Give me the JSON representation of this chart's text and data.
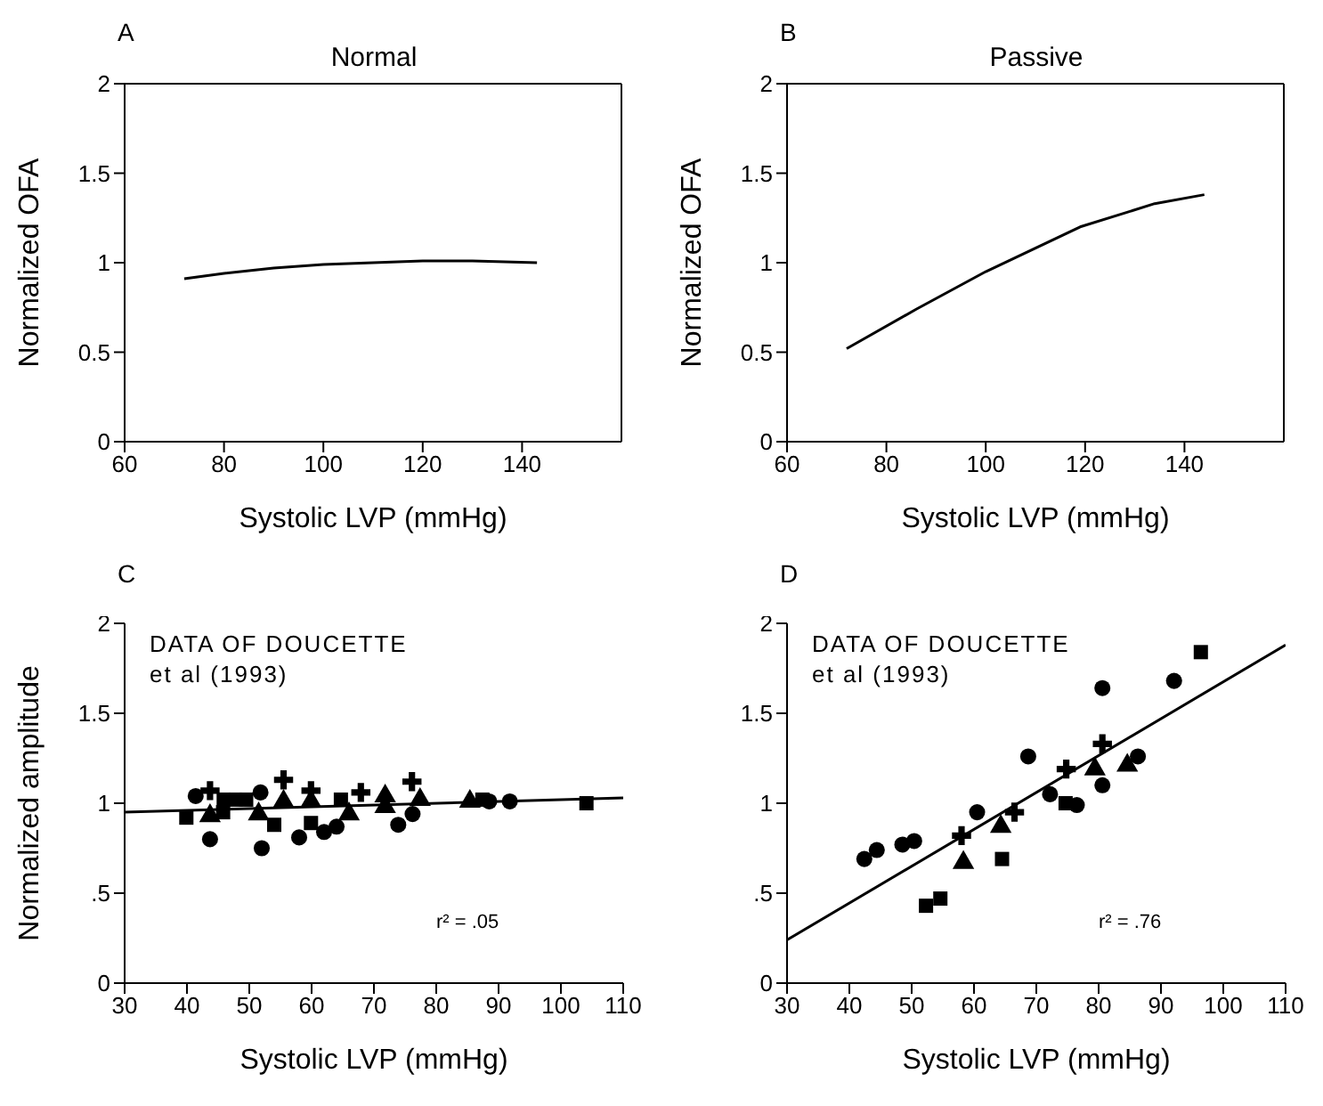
{
  "chart_data": [
    {
      "type": "line",
      "title": "Normal",
      "xlabel": "Systolic LVP (mmHg)",
      "ylabel": "Normalized OFA",
      "annotations": [
        "A"
      ],
      "xlim": [
        60,
        160
      ],
      "xticks": [
        60,
        80,
        100,
        120,
        140
      ],
      "ylim": [
        0,
        2
      ],
      "yticks": [
        0,
        0.5,
        1,
        1.5,
        2
      ],
      "marker": "none",
      "series": [
        {
          "color": "#000000",
          "x": [
            72,
            80,
            90,
            100,
            110,
            120,
            130,
            143
          ],
          "values": [
            0.91,
            0.94,
            0.97,
            0.99,
            1.0,
            1.01,
            1.01,
            1.0
          ]
        }
      ]
    },
    {
      "type": "line",
      "title": "Passive",
      "xlabel": "Systolic LVP (mmHg)",
      "ylabel": "Normalized OFA",
      "annotations": [
        "B"
      ],
      "xlim": [
        60,
        160
      ],
      "xticks": [
        60,
        80,
        100,
        120,
        140
      ],
      "ylim": [
        0,
        2
      ],
      "yticks": [
        0,
        0.5,
        1,
        1.5,
        2
      ],
      "marker": "none",
      "series": [
        {
          "color": "#000000",
          "x": [
            72,
            86,
            100,
            119,
            134,
            144
          ],
          "values": [
            0.52,
            0.74,
            0.95,
            1.2,
            1.33,
            1.38
          ]
        }
      ]
    },
    {
      "type": "scatter",
      "xlabel": "Systolic LVP (mmHg)",
      "ylabel": "Normalized amplitude",
      "annotations": [
        "C",
        "DATA OF DOUCETTE\net al (1993)",
        "r² = .05"
      ],
      "xlim": [
        30,
        110
      ],
      "xticks": [
        30,
        40,
        50,
        60,
        70,
        80,
        90,
        100,
        110
      ],
      "ylim": [
        0,
        2
      ],
      "yticks": [
        0,
        {
          "value": 0.5,
          "label": ".5"
        },
        1,
        1.5,
        2
      ],
      "series": [
        {
          "color": "#000000",
          "marker": "circle",
          "x": [
            41.4,
            43.7,
            51.8,
            52,
            58,
            62,
            64,
            73.9,
            76.2,
            88.5,
            91.8
          ],
          "values": [
            1.04,
            0.8,
            1.06,
            0.75,
            0.81,
            0.84,
            0.87,
            0.88,
            0.94,
            1.01,
            1.01
          ]
        },
        {
          "color": "#000000",
          "marker": "square",
          "x": [
            39.9,
            45.8,
            45.9,
            47.8,
            49.5,
            54,
            59.9,
            64.7,
            87.4,
            104.1
          ],
          "values": [
            0.92,
            0.95,
            1.02,
            1.02,
            1.02,
            0.88,
            0.89,
            1.02,
            1.02,
            1.0
          ]
        },
        {
          "color": "#000000",
          "marker": "triangle",
          "x": [
            43.7,
            51.5,
            55.5,
            59.9,
            66,
            71.8,
            71.8,
            77.4,
            85.4
          ],
          "values": [
            0.93,
            0.94,
            1.01,
            1.01,
            0.94,
            1.04,
            0.98,
            1.02,
            1.01
          ]
        },
        {
          "color": "#000000",
          "marker": "cross",
          "x": [
            43.7,
            55.5,
            59.9,
            67.9,
            76.1
          ],
          "values": [
            1.07,
            1.13,
            1.07,
            1.06,
            1.12
          ]
        },
        {
          "type": "line",
          "color": "#000000",
          "marker": "none",
          "x": [
            30,
            110
          ],
          "values": [
            0.95,
            1.03
          ]
        }
      ]
    },
    {
      "type": "scatter",
      "xlabel": "Systolic LVP (mmHg)",
      "annotations": [
        "D",
        "DATA OF DOUCETTE\net al (1993)",
        "r² = .76"
      ],
      "xlim": [
        30,
        110
      ],
      "xticks": [
        30,
        40,
        50,
        60,
        70,
        80,
        90,
        100,
        110
      ],
      "ylim": [
        0,
        2
      ],
      "yticks": [
        0,
        {
          "value": 0.5,
          "label": ".5"
        },
        1,
        1.5,
        2
      ],
      "series": [
        {
          "color": "#000000",
          "marker": "circle",
          "x": [
            42.4,
            44.4,
            48.5,
            50.4,
            60.5,
            68.7,
            72.2,
            76.5,
            80.6,
            80.6,
            86.3,
            92.1
          ],
          "values": [
            0.69,
            0.74,
            0.77,
            0.79,
            0.95,
            1.26,
            1.05,
            0.99,
            1.64,
            1.1,
            1.26,
            1.68
          ]
        },
        {
          "color": "#000000",
          "marker": "square",
          "x": [
            52.3,
            54.6,
            64.5,
            74.7,
            96.4
          ],
          "values": [
            0.43,
            0.47,
            0.69,
            1.0,
            1.84
          ]
        },
        {
          "color": "#000000",
          "marker": "triangle",
          "x": [
            58.3,
            64.3,
            79.4,
            84.6
          ],
          "values": [
            0.67,
            0.87,
            1.19,
            1.21
          ]
        },
        {
          "color": "#000000",
          "marker": "cross",
          "x": [
            58,
            66.5,
            74.8,
            80.6
          ],
          "values": [
            0.82,
            0.95,
            1.19,
            1.33
          ]
        },
        {
          "type": "line",
          "color": "#000000",
          "marker": "none",
          "x": [
            30,
            110
          ],
          "values": [
            0.24,
            1.88
          ]
        }
      ]
    }
  ]
}
